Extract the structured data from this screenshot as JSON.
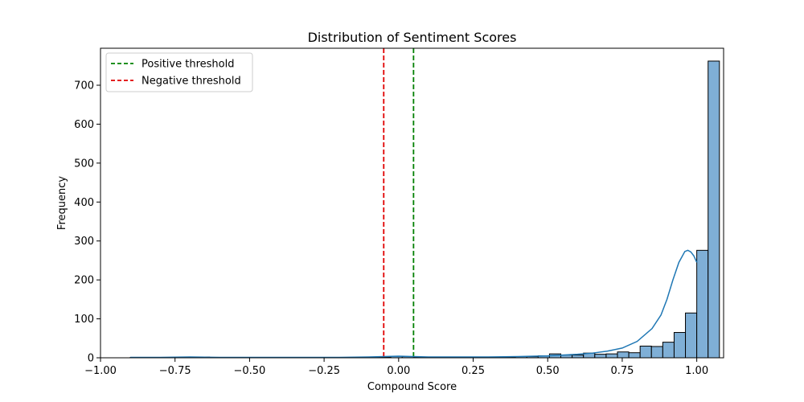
{
  "chart_data": {
    "type": "bar",
    "title": "Distribution of Sentiment Scores",
    "xlabel": "Compound Score",
    "ylabel": "Frequency",
    "xlim": [
      -1.0,
      1.09
    ],
    "ylim": [
      0,
      795
    ],
    "x_ticks": [
      "−1.00",
      "−0.75",
      "−0.50",
      "−0.25",
      "0.00",
      "0.25",
      "0.50",
      "0.75",
      "1.00"
    ],
    "x_tick_values": [
      -1.0,
      -0.75,
      -0.5,
      -0.25,
      0.0,
      0.25,
      0.5,
      0.75,
      1.0
    ],
    "y_ticks": [
      "0",
      "100",
      "200",
      "300",
      "400",
      "500",
      "600",
      "700"
    ],
    "y_tick_values": [
      0,
      100,
      200,
      300,
      400,
      500,
      600,
      700
    ],
    "grid": false,
    "legend_position": "top-left",
    "bar_color": "#7FAFD6",
    "bar_edge_color": "#000000",
    "kde_color": "#1F77B4",
    "histogram": {
      "bin_start": -0.9,
      "bin_width": 0.038,
      "counts": [
        1,
        1,
        1,
        1,
        1,
        1,
        2,
        1,
        1,
        1,
        1,
        1,
        1,
        1,
        1,
        1,
        1,
        1,
        1,
        1,
        1,
        1,
        2,
        4,
        3,
        2,
        2,
        2,
        2,
        2,
        2,
        2,
        2,
        2,
        3,
        3,
        5,
        10,
        7,
        7,
        12,
        9,
        10,
        15,
        13,
        30,
        29,
        40,
        65,
        115,
        276,
        762
      ]
    },
    "kde": {
      "x": [
        -0.9,
        -0.8,
        -0.7,
        -0.6,
        -0.5,
        -0.4,
        -0.3,
        -0.2,
        -0.1,
        -0.05,
        0.0,
        0.05,
        0.1,
        0.2,
        0.3,
        0.4,
        0.5,
        0.55,
        0.6,
        0.65,
        0.7,
        0.75,
        0.8,
        0.85,
        0.88,
        0.9,
        0.92,
        0.94,
        0.96,
        0.97,
        0.98,
        0.99,
        1.0
      ],
      "y": [
        1,
        1,
        2,
        1,
        1,
        1,
        1,
        1,
        2,
        3,
        4,
        3,
        2,
        2,
        2,
        3,
        5,
        7,
        9,
        12,
        17,
        25,
        42,
        75,
        110,
        150,
        200,
        245,
        273,
        276,
        272,
        262,
        245
      ]
    },
    "thresholds": [
      {
        "name": "Positive threshold",
        "x": 0.05,
        "color": "#008000"
      },
      {
        "name": "Negative threshold",
        "x": -0.05,
        "color": "#E00000"
      }
    ]
  }
}
